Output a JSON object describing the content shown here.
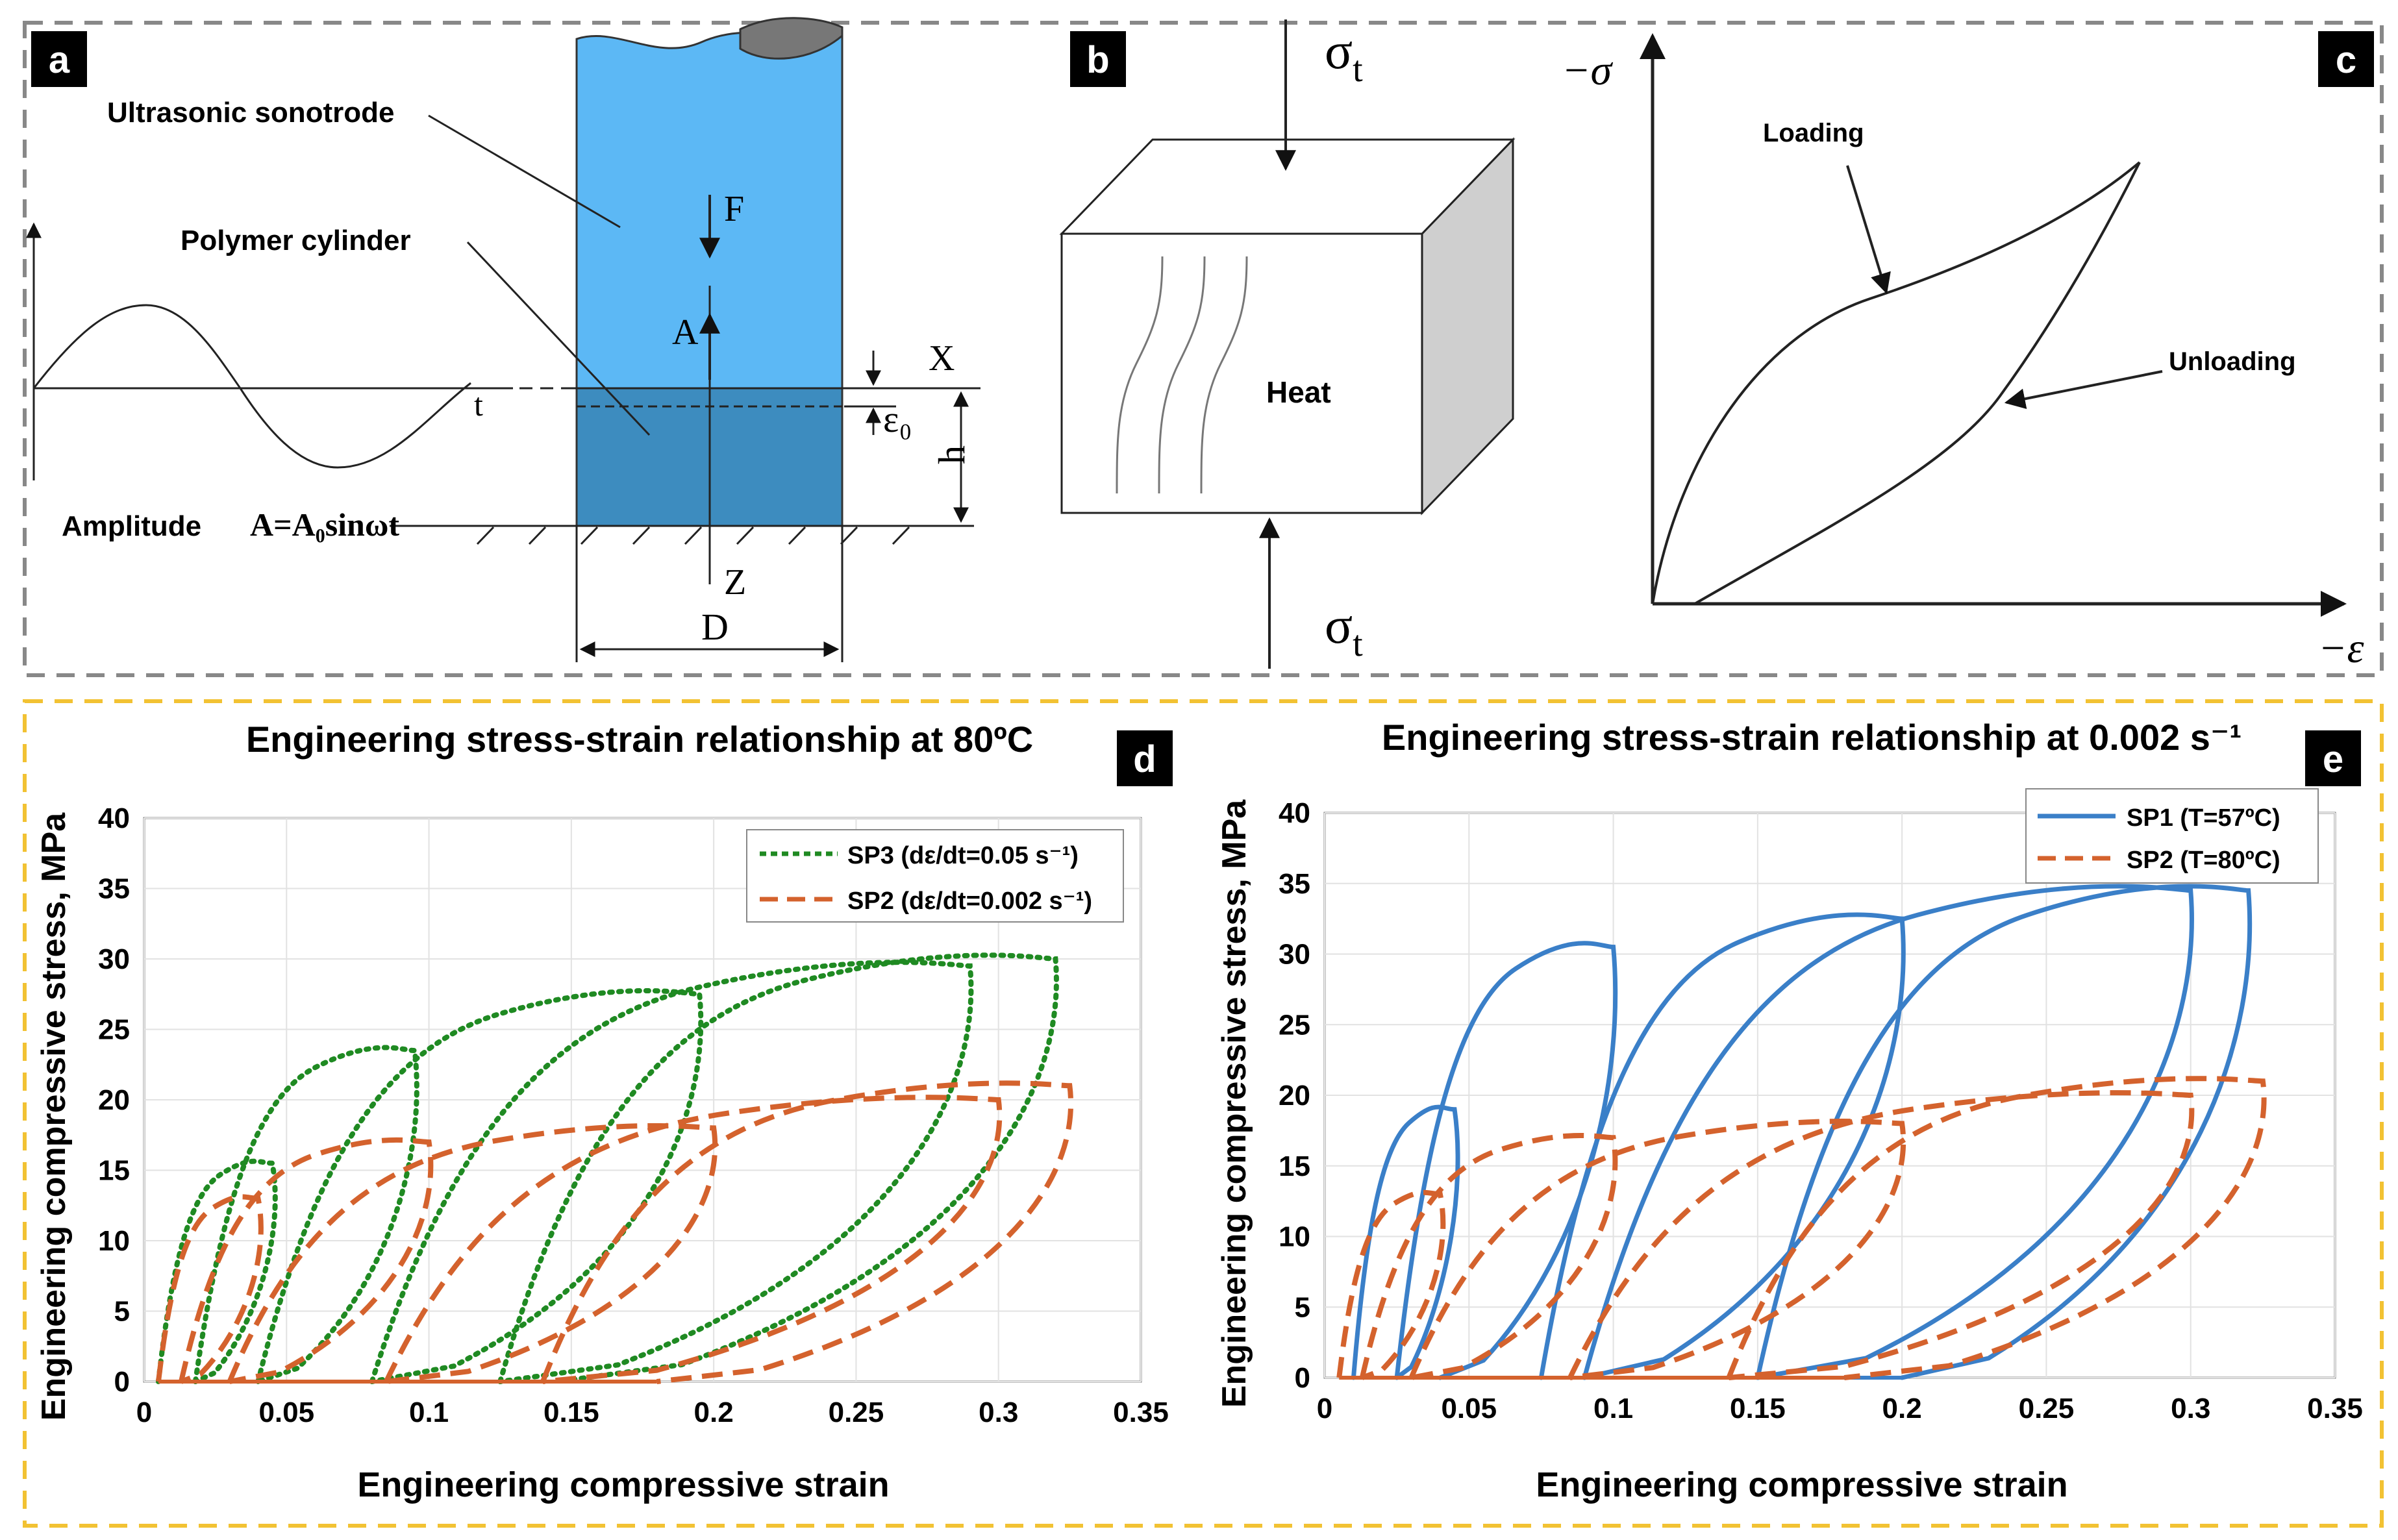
{
  "panels": {
    "a": {
      "badge": "a",
      "sonotrode_label": "Ultrasonic sonotrode",
      "cylinder_label": "Polymer cylinder",
      "amplitude_label": "Amplitude",
      "amplitude_formula": "A=A₀sinωt",
      "t_label": "t",
      "F_label": "F",
      "A_label": "A",
      "X_label": "X",
      "eps_label": "ε₀",
      "h_label": "h",
      "Z_label": "Z",
      "D_label": "D"
    },
    "b": {
      "badge": "b",
      "sigma_top": "σ",
      "sigma_top_sub": "t",
      "sigma_bottom": "σ",
      "sigma_bottom_sub": "t",
      "heat_label": "Heat"
    },
    "c": {
      "badge": "c",
      "y_axis_label": "−σ",
      "x_axis_label": "−ε",
      "loading_label": "Loading",
      "unloading_label": "Unloading"
    },
    "d": {
      "badge": "d"
    },
    "e": {
      "badge": "e"
    }
  },
  "colors": {
    "sonotrode": "#5cb8f5",
    "cylinder": "#3d8cbf",
    "badge": "#000000",
    "sp1": "#3a7fc8",
    "sp2": "#d4622d",
    "sp3": "#1f8a22",
    "top_border": "#888888",
    "bottom_border": "#f2c233"
  },
  "chart_data": [
    {
      "type": "line",
      "title": "Engineering stress-strain relationship at 80ºC",
      "xlabel": "Engineering compressive strain",
      "ylabel": "Engineering compressive stress, MPa",
      "xlim": [
        0,
        0.35
      ],
      "ylim": [
        0,
        40
      ],
      "xticks": [
        0,
        0.05,
        0.1,
        0.15,
        0.2,
        0.25,
        0.3,
        0.35
      ],
      "yticks": [
        0,
        5,
        10,
        15,
        20,
        25,
        30,
        35,
        40
      ],
      "xtick_labels": [
        "0",
        "0.05",
        "0.1",
        "0.15",
        "0.2",
        "0.25",
        "0.3",
        "0.35"
      ],
      "ytick_labels": [
        "0",
        "5",
        "10",
        "15",
        "20",
        "25",
        "30",
        "35",
        "40"
      ],
      "grid": true,
      "legend_position": "top-right",
      "series": [
        {
          "name": "SP3",
          "legend_label": "SP3 (dε/dt=0.05 s⁻¹)",
          "style": "dotted",
          "color": "#1f8a22",
          "loops": [
            {
              "start": 0.005,
              "peak": [
                0.045,
                15.5
              ],
              "end": 0.018
            },
            {
              "start": 0.018,
              "peak": [
                0.095,
                23.5
              ],
              "end": 0.04
            },
            {
              "start": 0.04,
              "peak": [
                0.195,
                27.5
              ],
              "end": 0.08
            },
            {
              "start": 0.08,
              "peak": [
                0.29,
                29.5
              ],
              "end": 0.125
            },
            {
              "start": 0.125,
              "peak": [
                0.32,
                30.0
              ],
              "end": 0.145
            }
          ]
        },
        {
          "name": "SP2",
          "legend_label": "SP2 (dε/dt=0.002 s⁻¹)",
          "style": "dashed",
          "color": "#d4622d",
          "loops": [
            {
              "start": 0.005,
              "peak": [
                0.04,
                13.0
              ],
              "end": 0.013
            },
            {
              "start": 0.013,
              "peak": [
                0.1,
                17.0
              ],
              "end": 0.03
            },
            {
              "start": 0.03,
              "peak": [
                0.2,
                18.0
              ],
              "end": 0.085
            },
            {
              "start": 0.085,
              "peak": [
                0.3,
                20.0
              ],
              "end": 0.14
            },
            {
              "start": 0.14,
              "peak": [
                0.325,
                21.0
              ],
              "end": 0.18
            }
          ]
        }
      ]
    },
    {
      "type": "line",
      "title": "Engineering stress-strain relationship at 0.002 s⁻¹",
      "xlabel": "Engineering compressive strain",
      "ylabel": "Engineering compressive stress, MPa",
      "xlim": [
        0,
        0.35
      ],
      "ylim": [
        0,
        40
      ],
      "xticks": [
        0,
        0.05,
        0.1,
        0.15,
        0.2,
        0.25,
        0.3,
        0.35
      ],
      "yticks": [
        0,
        5,
        10,
        15,
        20,
        25,
        30,
        35,
        40
      ],
      "xtick_labels": [
        "0",
        "0.05",
        "0.1",
        "0.15",
        "0.2",
        "0.25",
        "0.3",
        "0.35"
      ],
      "ytick_labels": [
        "0",
        "5",
        "10",
        "15",
        "20",
        "25",
        "30",
        "35",
        "40"
      ],
      "grid": true,
      "legend_position": "top-right",
      "series": [
        {
          "name": "SP1",
          "legend_label": "SP1 (T=57ºC)",
          "style": "solid",
          "color": "#3a7fc8",
          "loops": [
            {
              "start": 0.01,
              "peak": [
                0.045,
                19.0
              ],
              "end": 0.025
            },
            {
              "start": 0.025,
              "peak": [
                0.1,
                30.5
              ],
              "end": 0.04
            },
            {
              "start": 0.075,
              "peak": [
                0.2,
                32.5
              ],
              "end": 0.09
            },
            {
              "start": 0.09,
              "peak": [
                0.3,
                34.5
              ],
              "end": 0.15
            },
            {
              "start": 0.15,
              "peak": [
                0.32,
                34.5
              ],
              "end": 0.2
            }
          ]
        },
        {
          "name": "SP2",
          "legend_label": "SP2 (T=80ºC)",
          "style": "dashed",
          "color": "#d4622d",
          "loops": [
            {
              "start": 0.005,
              "peak": [
                0.04,
                13.0
              ],
              "end": 0.013
            },
            {
              "start": 0.013,
              "peak": [
                0.1,
                17.0
              ],
              "end": 0.03
            },
            {
              "start": 0.03,
              "peak": [
                0.2,
                18.0
              ],
              "end": 0.085
            },
            {
              "start": 0.085,
              "peak": [
                0.3,
                20.0
              ],
              "end": 0.14
            },
            {
              "start": 0.14,
              "peak": [
                0.325,
                21.0
              ],
              "end": 0.18
            }
          ]
        }
      ]
    }
  ]
}
